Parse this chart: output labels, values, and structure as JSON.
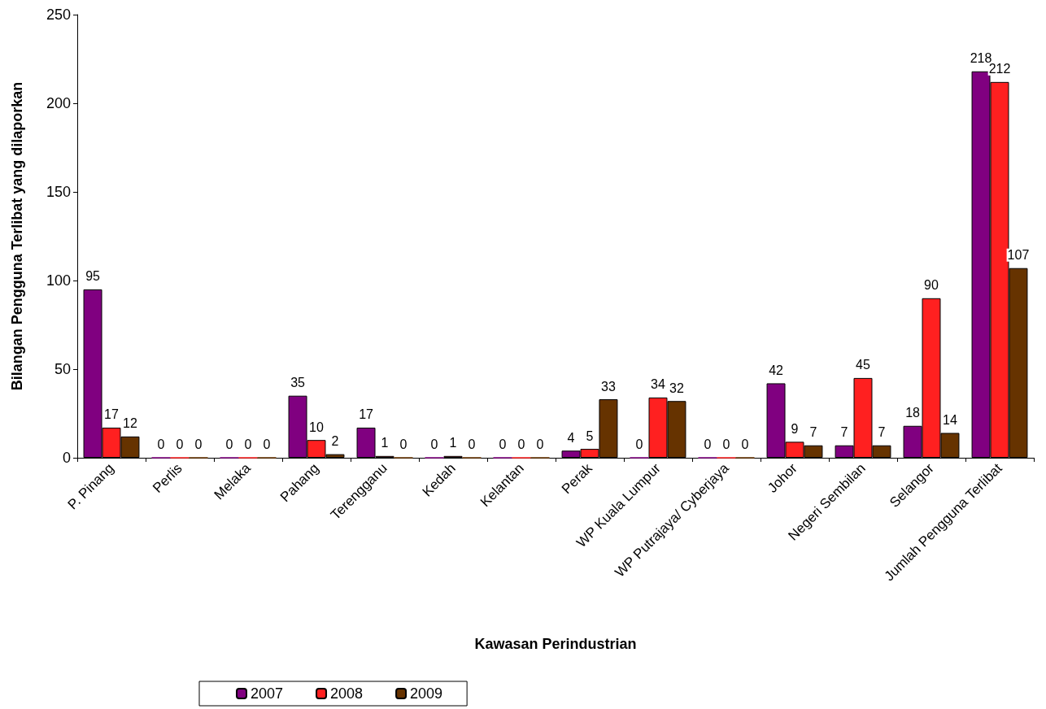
{
  "chart_data": {
    "type": "bar",
    "xlabel": "Kawasan Perindustrian",
    "ylabel": "Bilangan Pengguna Terlibat yang dilaporkan",
    "categories": [
      "P. Pinang",
      "Perlis",
      "Melaka",
      "Pahang",
      "Terengganu",
      "Kedah",
      "Kelantan",
      "Perak",
      "WP Kuala Lumpur",
      "WP Putrajaya/ Cyberjaya",
      "Johor",
      "Negeri Sembilan",
      "Selangor",
      "Jumlah Pengguna Terlibat"
    ],
    "series": [
      {
        "name": "2007",
        "color": "#800080",
        "values": [
          95,
          0,
          0,
          35,
          17,
          0,
          0,
          4,
          0,
          0,
          42,
          7,
          18,
          218
        ]
      },
      {
        "name": "2008",
        "color": "#ff2020",
        "values": [
          17,
          0,
          0,
          10,
          1,
          1,
          0,
          5,
          34,
          0,
          9,
          45,
          90,
          212
        ]
      },
      {
        "name": "2009",
        "color": "#663300",
        "values": [
          12,
          0,
          0,
          2,
          0,
          0,
          0,
          33,
          32,
          0,
          7,
          7,
          14,
          107
        ]
      }
    ],
    "ylim": [
      0,
      250
    ],
    "yticks": [
      0,
      50,
      100,
      150,
      200,
      250
    ],
    "grid": false,
    "legend": "bottom",
    "data_labels": true
  }
}
